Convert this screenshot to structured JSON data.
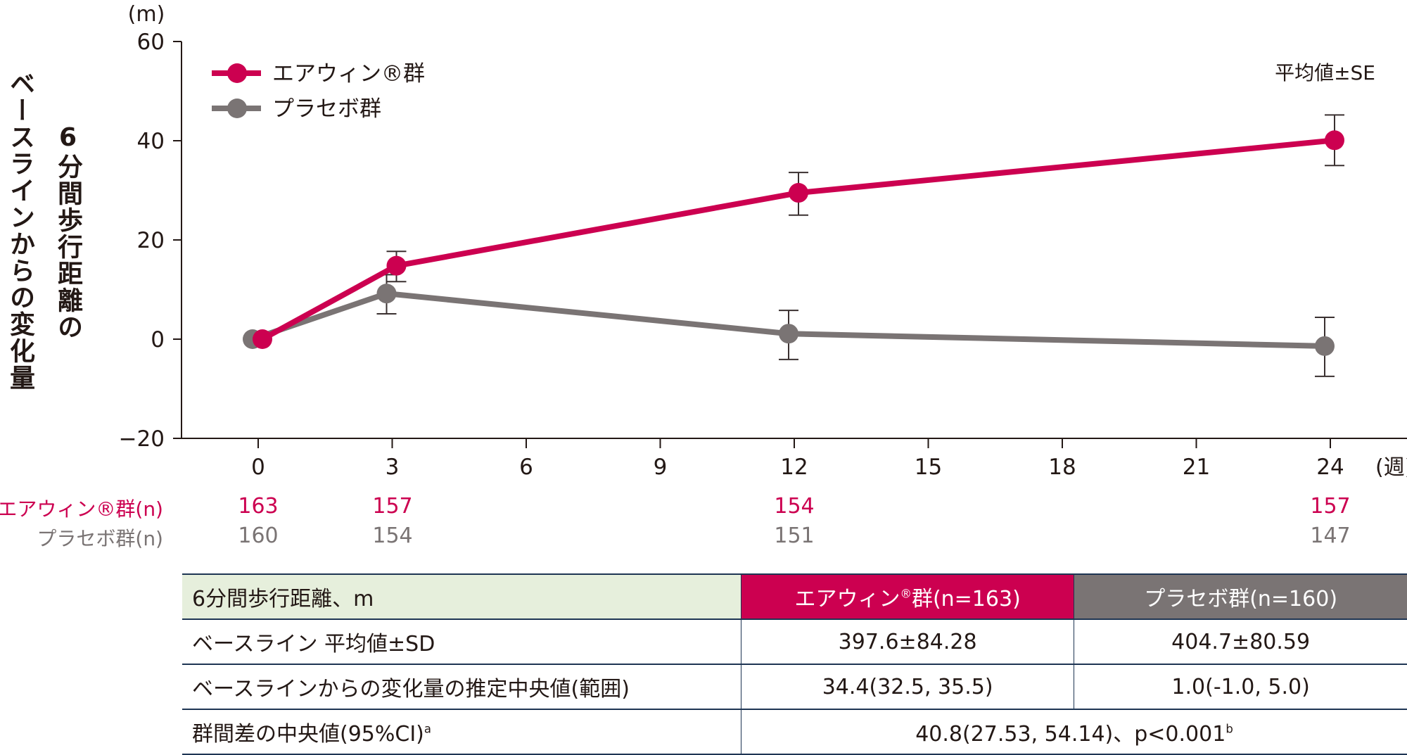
{
  "chart_data": {
    "type": "line",
    "title": "",
    "ylabel": "6分間歩行距離のベースラインからの変化量",
    "yunit": "(m)",
    "xlabel": "(週)",
    "ylim": [
      -20,
      60
    ],
    "yticks": [
      -20,
      0,
      20,
      40,
      60
    ],
    "xlim": [
      -2,
      26
    ],
    "xticks": [
      0,
      3,
      6,
      9,
      12,
      15,
      18,
      21,
      24
    ],
    "grid": false,
    "legend_position": "top-left",
    "annotation": "平均値±SE",
    "x": [
      0,
      3,
      12,
      24
    ],
    "series": [
      {
        "name": "エアウィン®群",
        "color": "#cc0050",
        "values": [
          0,
          14.8,
          29.5,
          40.1
        ],
        "se_upper": [
          0,
          17.7,
          33.6,
          45.2
        ],
        "se_lower": [
          0,
          11.6,
          25.0,
          35.0
        ],
        "n": [
          163,
          157,
          154,
          157
        ]
      },
      {
        "name": "プラセボ群",
        "color": "#7a7474",
        "values": [
          0,
          9.2,
          1.1,
          -1.4
        ],
        "se_upper": [
          0,
          13.0,
          5.8,
          4.4
        ],
        "se_lower": [
          0,
          5.1,
          -4.1,
          -7.5
        ],
        "n": [
          160,
          154,
          151,
          147
        ]
      }
    ]
  },
  "axis": {
    "y_title_line1": "ベースラインからの変化量",
    "y_title_line2": "6分間歩行距離の",
    "y_unit": "(m)",
    "x_unit": "(週)",
    "se_note": "平均値±SE",
    "y_ticks": [
      "60",
      "40",
      "20",
      "0",
      "−20"
    ],
    "x_ticks": [
      "0",
      "3",
      "6",
      "9",
      "12",
      "15",
      "18",
      "21",
      "24"
    ]
  },
  "legend": {
    "red_label": "エアウィン®群",
    "gray_label": "プラセボ群"
  },
  "n_rows": {
    "red_label": "エアウィン®群(n)",
    "gray_label": "プラセボ群(n)",
    "red_values": [
      "163",
      "157",
      "154",
      "157"
    ],
    "gray_values": [
      "160",
      "154",
      "151",
      "147"
    ]
  },
  "table": {
    "header": {
      "label": "6分間歩行距離、m",
      "red_group": "エアウィン",
      "red_group_sup": "®",
      "red_group_suffix": "群(n=163)",
      "gray_group": "プラセボ群(n=160)"
    },
    "rows": [
      {
        "label": "ベースライン 平均値±SD",
        "red": "397.6±84.28",
        "gray": "404.7±80.59"
      },
      {
        "label": "ベースラインからの変化量の推定中央値(範囲)",
        "red": "34.4(32.5, 35.5)",
        "gray": "1.0(-1.0, 5.0)"
      }
    ],
    "diff_row": {
      "label": "群間差の中央値(95%CI)",
      "label_sup": "a",
      "value": "40.8(27.53, 54.14)、p<0.001",
      "value_sup": "b"
    }
  },
  "colors": {
    "red": "#cc0050",
    "gray": "#7a7474",
    "header_bg": "#e6efdc",
    "border": "#1e3553"
  }
}
